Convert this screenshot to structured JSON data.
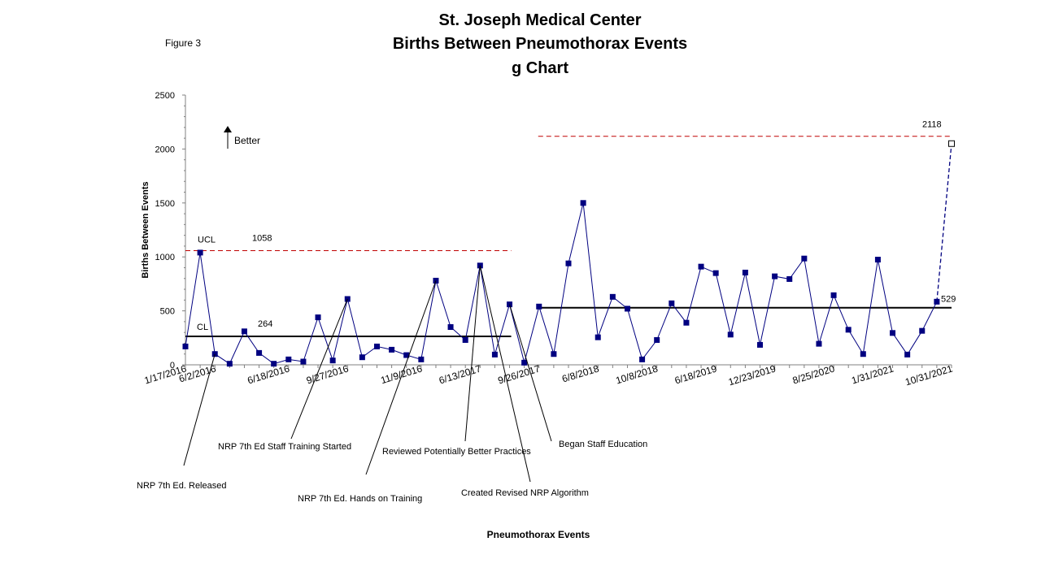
{
  "figure_label": "Figure 3",
  "chart_data": {
    "type": "line",
    "chart_kind": "g chart (control chart)",
    "title": [
      "St. Joseph Medical Center",
      "Births Between Pneumothorax Events",
      "g Chart"
    ],
    "xlabel": "Pneumothorax Events",
    "ylabel": "Births Between Events",
    "ylim": [
      0,
      2500
    ],
    "y_ticks": [
      0,
      500,
      1000,
      1500,
      2000,
      2500
    ],
    "x_tick_labels": [
      "1/17/2016",
      "6/2/2016",
      "6/18/2016",
      "9/27/2016",
      "11/9/2016",
      "6/13/2017",
      "9/26/2017",
      "6/8/2018",
      "10/8/2018",
      "6/18/2019",
      "12/23/2019",
      "8/25/2020",
      "1/31/2021",
      "10/31/2021"
    ],
    "grid": false,
    "series": [
      {
        "name": "Births Between Events",
        "color": "#000080",
        "values": [
          170,
          1040,
          100,
          10,
          310,
          110,
          10,
          50,
          30,
          440,
          40,
          610,
          70,
          170,
          140,
          90,
          50,
          780,
          350,
          230,
          920,
          95,
          560,
          20,
          540,
          100,
          940,
          1500,
          255,
          630,
          520,
          50,
          230,
          570,
          390,
          910,
          850,
          280,
          855,
          185,
          820,
          795,
          985,
          195,
          645,
          325,
          100,
          975,
          295,
          95,
          315,
          585
        ],
        "last_point": 2050,
        "last_point_style": "open square, dashed connector"
      }
    ],
    "control_limits": [
      {
        "phase": 1,
        "ucl_label": "UCL",
        "ucl": 1058,
        "cl_label": "CL",
        "cl": 264
      },
      {
        "phase": 2,
        "ucl": 2118,
        "cl": 529
      }
    ],
    "annotations": {
      "better": "Better",
      "events": [
        "NRP 7th Ed. Released",
        "NRP 7th Ed Staff Training Started",
        "NRP 7th Ed. Hands on Training",
        "Reviewed  Potentially Better Practices",
        "Created Revised NRP Algorithm",
        "Began Staff Education"
      ]
    }
  },
  "colors": {
    "series": "#000080",
    "limit_line": "#c00000",
    "center_line": "#000000",
    "axis": "#808080"
  }
}
